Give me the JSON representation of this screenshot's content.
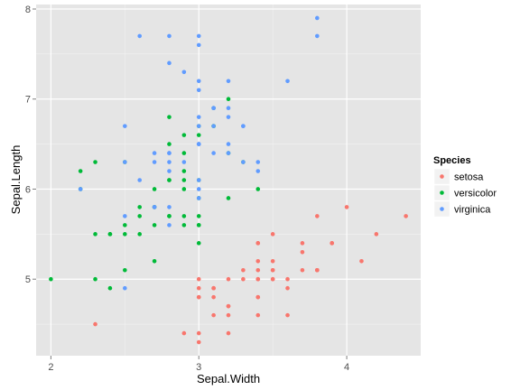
{
  "chart_data": {
    "type": "scatter",
    "xlabel": "Sepal.Width",
    "ylabel": "Sepal.Length",
    "xlim": [
      1.9,
      4.5
    ],
    "ylim": [
      4.15,
      8.05
    ],
    "x_ticks": [
      2,
      3,
      4
    ],
    "y_ticks": [
      5,
      6,
      7,
      8
    ],
    "x_tick_labels": [
      "2",
      "3",
      "4"
    ],
    "y_tick_labels": [
      "5",
      "6",
      "7",
      "8"
    ],
    "grid": true,
    "legend_placement": "right",
    "legend_title": "Species",
    "series": [
      {
        "name": "setosa",
        "color": "#f8766d",
        "points": [
          [
            3.5,
            5.1
          ],
          [
            3.0,
            4.9
          ],
          [
            3.2,
            4.7
          ],
          [
            3.1,
            4.6
          ],
          [
            3.6,
            5.0
          ],
          [
            3.9,
            5.4
          ],
          [
            3.4,
            4.6
          ],
          [
            3.4,
            5.0
          ],
          [
            2.9,
            4.4
          ],
          [
            3.1,
            4.9
          ],
          [
            3.7,
            5.4
          ],
          [
            3.4,
            4.8
          ],
          [
            3.0,
            4.8
          ],
          [
            3.0,
            4.3
          ],
          [
            4.0,
            5.8
          ],
          [
            4.4,
            5.7
          ],
          [
            3.9,
            5.4
          ],
          [
            3.5,
            5.1
          ],
          [
            3.8,
            5.7
          ],
          [
            3.8,
            5.1
          ],
          [
            3.4,
            5.4
          ],
          [
            3.7,
            5.1
          ],
          [
            3.6,
            4.6
          ],
          [
            3.3,
            5.1
          ],
          [
            3.4,
            4.8
          ],
          [
            3.0,
            5.0
          ],
          [
            3.4,
            5.0
          ],
          [
            3.5,
            5.2
          ],
          [
            3.4,
            5.2
          ],
          [
            3.2,
            4.7
          ],
          [
            3.1,
            4.8
          ],
          [
            3.4,
            5.4
          ],
          [
            4.1,
            5.2
          ],
          [
            4.2,
            5.5
          ],
          [
            3.1,
            4.9
          ],
          [
            3.2,
            5.0
          ],
          [
            3.5,
            5.5
          ],
          [
            3.6,
            4.9
          ],
          [
            3.0,
            4.4
          ],
          [
            3.4,
            5.1
          ],
          [
            3.5,
            5.0
          ],
          [
            2.3,
            4.5
          ],
          [
            3.2,
            4.4
          ],
          [
            3.5,
            5.0
          ],
          [
            3.8,
            5.1
          ],
          [
            3.0,
            4.8
          ],
          [
            3.8,
            5.1
          ],
          [
            3.2,
            4.6
          ],
          [
            3.7,
            5.3
          ],
          [
            3.3,
            5.0
          ]
        ]
      },
      {
        "name": "versicolor",
        "color": "#00ba38",
        "points": [
          [
            3.2,
            7.0
          ],
          [
            3.2,
            6.4
          ],
          [
            3.1,
            6.9
          ],
          [
            2.3,
            5.5
          ],
          [
            2.8,
            6.5
          ],
          [
            2.8,
            5.7
          ],
          [
            3.3,
            6.3
          ],
          [
            2.4,
            4.9
          ],
          [
            2.9,
            6.6
          ],
          [
            2.7,
            5.2
          ],
          [
            2.0,
            5.0
          ],
          [
            3.0,
            5.9
          ],
          [
            2.2,
            6.0
          ],
          [
            2.9,
            6.1
          ],
          [
            2.9,
            5.6
          ],
          [
            3.1,
            6.7
          ],
          [
            3.0,
            5.6
          ],
          [
            2.7,
            5.8
          ],
          [
            2.2,
            6.2
          ],
          [
            2.5,
            5.6
          ],
          [
            3.2,
            5.9
          ],
          [
            2.8,
            6.1
          ],
          [
            2.5,
            6.3
          ],
          [
            2.8,
            6.1
          ],
          [
            2.9,
            6.4
          ],
          [
            3.0,
            6.6
          ],
          [
            2.8,
            6.8
          ],
          [
            3.0,
            6.7
          ],
          [
            2.9,
            6.0
          ],
          [
            2.6,
            5.7
          ],
          [
            2.4,
            5.5
          ],
          [
            2.4,
            5.5
          ],
          [
            2.7,
            5.8
          ],
          [
            2.7,
            6.0
          ],
          [
            3.0,
            5.4
          ],
          [
            3.4,
            6.0
          ],
          [
            3.1,
            6.7
          ],
          [
            2.3,
            6.3
          ],
          [
            3.0,
            5.6
          ],
          [
            2.5,
            5.5
          ],
          [
            2.6,
            5.5
          ],
          [
            3.0,
            6.1
          ],
          [
            2.6,
            5.8
          ],
          [
            2.3,
            5.0
          ],
          [
            2.7,
            5.6
          ],
          [
            3.0,
            5.7
          ],
          [
            2.9,
            5.7
          ],
          [
            2.9,
            6.2
          ],
          [
            2.5,
            5.1
          ],
          [
            2.8,
            5.7
          ]
        ]
      },
      {
        "name": "virginica",
        "color": "#619cff",
        "points": [
          [
            3.3,
            6.3
          ],
          [
            2.7,
            5.8
          ],
          [
            3.0,
            7.1
          ],
          [
            2.9,
            6.3
          ],
          [
            3.0,
            6.5
          ],
          [
            3.0,
            7.6
          ],
          [
            2.5,
            4.9
          ],
          [
            2.9,
            7.3
          ],
          [
            2.5,
            6.7
          ],
          [
            3.6,
            7.2
          ],
          [
            3.2,
            6.5
          ],
          [
            2.7,
            6.4
          ],
          [
            3.0,
            6.8
          ],
          [
            2.5,
            5.7
          ],
          [
            2.8,
            5.8
          ],
          [
            3.2,
            6.4
          ],
          [
            3.0,
            6.5
          ],
          [
            3.8,
            7.7
          ],
          [
            2.6,
            7.7
          ],
          [
            2.2,
            6.0
          ],
          [
            3.2,
            6.9
          ],
          [
            2.8,
            5.6
          ],
          [
            2.8,
            7.7
          ],
          [
            2.7,
            6.3
          ],
          [
            3.3,
            6.7
          ],
          [
            3.2,
            7.2
          ],
          [
            2.8,
            6.2
          ],
          [
            3.0,
            6.1
          ],
          [
            2.8,
            6.4
          ],
          [
            3.0,
            7.2
          ],
          [
            2.8,
            7.4
          ],
          [
            3.8,
            7.9
          ],
          [
            2.8,
            6.4
          ],
          [
            2.8,
            6.3
          ],
          [
            2.6,
            6.1
          ],
          [
            3.0,
            7.7
          ],
          [
            3.4,
            6.3
          ],
          [
            3.1,
            6.4
          ],
          [
            3.0,
            6.0
          ],
          [
            3.1,
            6.9
          ],
          [
            3.1,
            6.7
          ],
          [
            3.1,
            6.9
          ],
          [
            2.7,
            5.8
          ],
          [
            3.2,
            6.8
          ],
          [
            3.3,
            6.7
          ],
          [
            3.0,
            6.7
          ],
          [
            2.5,
            6.3
          ],
          [
            3.0,
            6.5
          ],
          [
            3.4,
            6.2
          ],
          [
            3.0,
            5.9
          ]
        ]
      }
    ]
  }
}
